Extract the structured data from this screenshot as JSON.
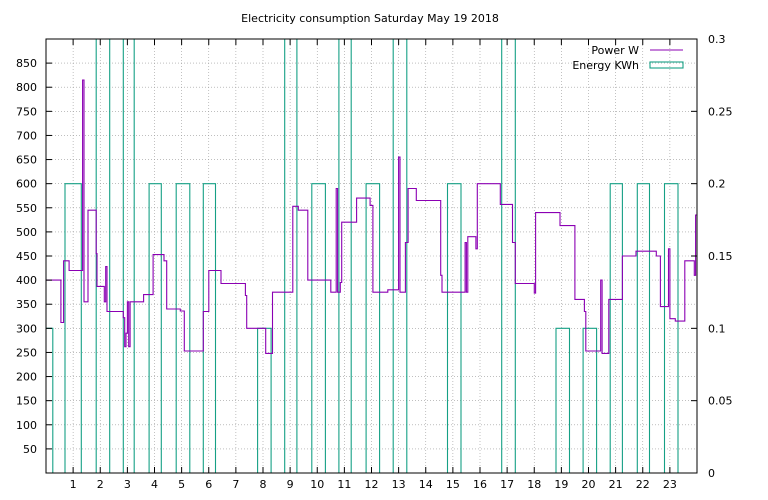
{
  "chart_data": {
    "type": "line",
    "title": "Electricity consumption Saturday May 19 2018",
    "xlabel": "",
    "ylabel": "",
    "x_range": [
      0,
      24
    ],
    "x_ticks": [
      1,
      2,
      3,
      4,
      5,
      6,
      7,
      8,
      9,
      10,
      11,
      12,
      13,
      14,
      15,
      16,
      17,
      18,
      19,
      20,
      21,
      22,
      23
    ],
    "ylim_left": [
      0,
      900
    ],
    "y_ticks_left": [
      50,
      100,
      150,
      200,
      250,
      300,
      350,
      400,
      450,
      500,
      550,
      600,
      650,
      700,
      750,
      800,
      850
    ],
    "ylim_right": [
      0,
      0.3
    ],
    "y_ticks_right": [
      0,
      0.05,
      0.1,
      0.15,
      0.2,
      0.25,
      0.3
    ],
    "grid": true,
    "legend_position": "top-right",
    "colors": {
      "power": "#8b00b3",
      "energy": "#16a085",
      "grid": "#999999",
      "axis": "#000000"
    },
    "series": [
      {
        "name": "Power W",
        "axis": "left",
        "style": "steps",
        "points": [
          [
            0.0,
            400
          ],
          [
            0.55,
            400
          ],
          [
            0.55,
            312
          ],
          [
            0.65,
            312
          ],
          [
            0.65,
            440
          ],
          [
            0.85,
            440
          ],
          [
            0.85,
            420
          ],
          [
            1.35,
            420
          ],
          [
            1.35,
            815
          ],
          [
            1.4,
            815
          ],
          [
            1.4,
            355
          ],
          [
            1.55,
            355
          ],
          [
            1.55,
            545
          ],
          [
            1.85,
            545
          ],
          [
            1.85,
            455
          ],
          [
            1.88,
            455
          ],
          [
            1.88,
            387
          ],
          [
            2.15,
            387
          ],
          [
            2.15,
            355
          ],
          [
            2.2,
            355
          ],
          [
            2.2,
            428
          ],
          [
            2.25,
            428
          ],
          [
            2.25,
            335
          ],
          [
            2.85,
            335
          ],
          [
            2.85,
            322
          ],
          [
            2.9,
            322
          ],
          [
            2.9,
            262
          ],
          [
            2.95,
            262
          ],
          [
            2.95,
            290
          ],
          [
            3.0,
            290
          ],
          [
            3.0,
            355
          ],
          [
            3.05,
            355
          ],
          [
            3.05,
            262
          ],
          [
            3.1,
            262
          ],
          [
            3.1,
            355
          ],
          [
            3.6,
            355
          ],
          [
            3.6,
            370
          ],
          [
            3.95,
            370
          ],
          [
            3.95,
            453
          ],
          [
            4.35,
            453
          ],
          [
            4.35,
            440
          ],
          [
            4.45,
            440
          ],
          [
            4.45,
            340
          ],
          [
            4.95,
            340
          ],
          [
            4.95,
            336
          ],
          [
            5.1,
            336
          ],
          [
            5.1,
            253
          ],
          [
            5.8,
            253
          ],
          [
            5.8,
            335
          ],
          [
            6.0,
            335
          ],
          [
            6.0,
            420
          ],
          [
            6.45,
            420
          ],
          [
            6.45,
            393
          ],
          [
            7.35,
            393
          ],
          [
            7.35,
            368
          ],
          [
            7.4,
            368
          ],
          [
            7.4,
            300
          ],
          [
            8.1,
            300
          ],
          [
            8.1,
            248
          ],
          [
            8.35,
            248
          ],
          [
            8.35,
            375
          ],
          [
            9.1,
            375
          ],
          [
            9.1,
            553
          ],
          [
            9.3,
            553
          ],
          [
            9.3,
            545
          ],
          [
            9.65,
            545
          ],
          [
            9.65,
            400
          ],
          [
            10.5,
            400
          ],
          [
            10.5,
            375
          ],
          [
            10.7,
            375
          ],
          [
            10.7,
            590
          ],
          [
            10.75,
            590
          ],
          [
            10.75,
            375
          ],
          [
            10.85,
            375
          ],
          [
            10.85,
            395
          ],
          [
            10.9,
            395
          ],
          [
            10.9,
            520
          ],
          [
            11.45,
            520
          ],
          [
            11.45,
            570
          ],
          [
            11.95,
            570
          ],
          [
            11.95,
            555
          ],
          [
            12.05,
            555
          ],
          [
            12.05,
            375
          ],
          [
            12.6,
            375
          ],
          [
            12.6,
            380
          ],
          [
            13.0,
            380
          ],
          [
            13.0,
            655
          ],
          [
            13.05,
            655
          ],
          [
            13.05,
            375
          ],
          [
            13.25,
            375
          ],
          [
            13.25,
            478
          ],
          [
            13.35,
            478
          ],
          [
            13.35,
            590
          ],
          [
            13.65,
            590
          ],
          [
            13.65,
            565
          ],
          [
            14.55,
            565
          ],
          [
            14.55,
            410
          ],
          [
            14.6,
            410
          ],
          [
            14.6,
            375
          ],
          [
            15.45,
            375
          ],
          [
            15.45,
            478
          ],
          [
            15.5,
            478
          ],
          [
            15.5,
            375
          ],
          [
            15.55,
            375
          ],
          [
            15.55,
            490
          ],
          [
            15.85,
            490
          ],
          [
            15.85,
            465
          ],
          [
            15.9,
            465
          ],
          [
            15.9,
            600
          ],
          [
            16.75,
            600
          ],
          [
            16.75,
            557
          ],
          [
            17.2,
            557
          ],
          [
            17.2,
            478
          ],
          [
            17.3,
            478
          ],
          [
            17.3,
            393
          ],
          [
            18.0,
            393
          ],
          [
            18.0,
            373
          ],
          [
            18.05,
            373
          ],
          [
            18.05,
            540
          ],
          [
            18.95,
            540
          ],
          [
            18.95,
            513
          ],
          [
            19.5,
            513
          ],
          [
            19.5,
            360
          ],
          [
            19.85,
            360
          ],
          [
            19.85,
            335
          ],
          [
            19.9,
            335
          ],
          [
            19.9,
            253
          ],
          [
            20.45,
            253
          ],
          [
            20.45,
            400
          ],
          [
            20.5,
            400
          ],
          [
            20.5,
            248
          ],
          [
            20.75,
            248
          ],
          [
            20.75,
            360
          ],
          [
            21.25,
            360
          ],
          [
            21.25,
            450
          ],
          [
            21.75,
            450
          ],
          [
            21.75,
            460
          ],
          [
            22.5,
            460
          ],
          [
            22.5,
            450
          ],
          [
            22.65,
            450
          ],
          [
            22.65,
            345
          ],
          [
            22.95,
            345
          ],
          [
            22.95,
            465
          ],
          [
            23.0,
            465
          ],
          [
            23.0,
            320
          ],
          [
            23.2,
            320
          ],
          [
            23.2,
            315
          ],
          [
            23.55,
            315
          ],
          [
            23.55,
            440
          ],
          [
            23.9,
            440
          ],
          [
            23.9,
            410
          ],
          [
            23.95,
            410
          ],
          [
            23.95,
            535
          ],
          [
            24.0,
            535
          ]
        ]
      },
      {
        "name": "Energy KWh",
        "axis": "right",
        "style": "steps",
        "points": [
          [
            0.0,
            0.1
          ],
          [
            0.25,
            0.1
          ],
          [
            0.25,
            0
          ],
          [
            0.7,
            0
          ],
          [
            0.7,
            0.2
          ],
          [
            1.3,
            0.2
          ],
          [
            1.3,
            0
          ],
          [
            1.85,
            0
          ],
          [
            1.85,
            0.3
          ],
          [
            2.35,
            0.3
          ],
          [
            2.35,
            0
          ],
          [
            2.85,
            0
          ],
          [
            2.85,
            0.3
          ],
          [
            3.25,
            0.3
          ],
          [
            3.25,
            0
          ],
          [
            3.8,
            0
          ],
          [
            3.8,
            0.2
          ],
          [
            4.25,
            0.2
          ],
          [
            4.25,
            0
          ],
          [
            4.8,
            0
          ],
          [
            4.8,
            0.2
          ],
          [
            5.3,
            0.2
          ],
          [
            5.3,
            0
          ],
          [
            5.8,
            0
          ],
          [
            5.8,
            0.2
          ],
          [
            6.25,
            0.2
          ],
          [
            6.25,
            0
          ],
          [
            7.8,
            0
          ],
          [
            7.8,
            0.1
          ],
          [
            8.3,
            0.1
          ],
          [
            8.3,
            0
          ],
          [
            8.8,
            0
          ],
          [
            8.8,
            0.3
          ],
          [
            9.25,
            0.3
          ],
          [
            9.25,
            0
          ],
          [
            9.8,
            0
          ],
          [
            9.8,
            0.2
          ],
          [
            10.3,
            0.2
          ],
          [
            10.3,
            0
          ],
          [
            10.8,
            0
          ],
          [
            10.8,
            0.3
          ],
          [
            11.25,
            0.3
          ],
          [
            11.25,
            0
          ],
          [
            11.8,
            0
          ],
          [
            11.8,
            0.2
          ],
          [
            12.3,
            0.2
          ],
          [
            12.3,
            0
          ],
          [
            12.8,
            0
          ],
          [
            12.8,
            0.3
          ],
          [
            13.3,
            0.3
          ],
          [
            13.3,
            0
          ],
          [
            14.8,
            0
          ],
          [
            14.8,
            0.2
          ],
          [
            15.3,
            0.2
          ],
          [
            15.3,
            0
          ],
          [
            16.8,
            0
          ],
          [
            16.8,
            0.3
          ],
          [
            17.3,
            0.3
          ],
          [
            17.3,
            0
          ],
          [
            18.8,
            0
          ],
          [
            18.8,
            0.1
          ],
          [
            19.3,
            0.1
          ],
          [
            19.3,
            0
          ],
          [
            19.8,
            0
          ],
          [
            19.8,
            0.1
          ],
          [
            20.3,
            0.1
          ],
          [
            20.3,
            0
          ],
          [
            20.8,
            0
          ],
          [
            20.8,
            0.2
          ],
          [
            21.25,
            0.2
          ],
          [
            21.25,
            0
          ],
          [
            21.8,
            0
          ],
          [
            21.8,
            0.2
          ],
          [
            22.25,
            0.2
          ],
          [
            22.25,
            0
          ],
          [
            22.8,
            0
          ],
          [
            22.8,
            0.2
          ],
          [
            23.3,
            0.2
          ],
          [
            23.3,
            0
          ],
          [
            24.0,
            0
          ]
        ]
      }
    ]
  }
}
